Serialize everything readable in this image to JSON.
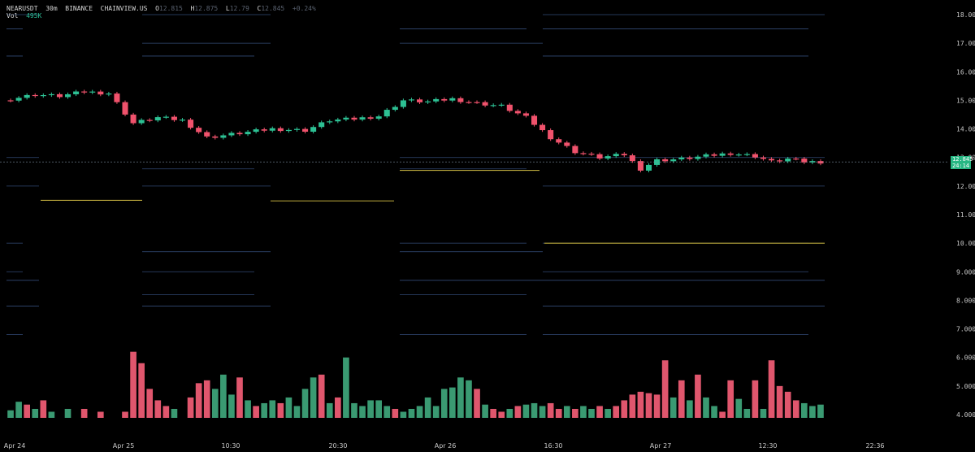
{
  "legend": {
    "symbol": "NEARUSDT",
    "interval": "30m",
    "exchange": "BINANCE",
    "source": "CHAINVIEW.US",
    "o_label": "O",
    "o_value": "12.815",
    "h_label": "H",
    "h_value": "12.875",
    "l_label": "L",
    "l_value": "12.79",
    "c_label": "C",
    "c_value": "12.845",
    "change": "+0.24%",
    "vol_label": "Vol",
    "vol_value": "495K"
  },
  "price_tag": {
    "price": "12.845",
    "countdown": "24:14"
  },
  "colors": {
    "background": "#000000",
    "up": "#2dc194",
    "down": "#f0526c",
    "volume_up": "#3a9a72",
    "volume_down": "#e0566d",
    "level_line": "#3f5d93",
    "support_line": "#b6a43b",
    "axis_text": "#c8c8c8"
  },
  "chart_data": {
    "type": "candlestick",
    "title": "",
    "xlabel": "",
    "ylabel": "",
    "ylim": [
      3.8,
      18.4
    ],
    "grid": false,
    "y_ticks": [
      "18.000",
      "17.000",
      "16.000",
      "15.000",
      "14.000",
      "13.000",
      "12.000",
      "11.000",
      "10.000",
      "9.000",
      "8.000",
      "7.000",
      "6.000",
      "5.000",
      "4.000"
    ],
    "x_labels": [
      "Apr 24",
      "Apr 25",
      "10:30",
      "20:30",
      "Apr 26",
      "16:30",
      "Apr 27",
      "12:30",
      "22:36"
    ],
    "last_price": 12.845,
    "close_path": [
      [
        0,
        15.05
      ],
      [
        3,
        15.2
      ],
      [
        6,
        15.15
      ],
      [
        9,
        15.3
      ],
      [
        12,
        15.25
      ],
      [
        15,
        14.2
      ],
      [
        18,
        14.4
      ],
      [
        21,
        14.3
      ],
      [
        24,
        13.7
      ],
      [
        28,
        13.85
      ],
      [
        32,
        14.0
      ],
      [
        36,
        13.95
      ],
      [
        39,
        14.3
      ],
      [
        42,
        14.35
      ],
      [
        45,
        14.45
      ],
      [
        48,
        15.0
      ],
      [
        51,
        14.95
      ],
      [
        54,
        15.05
      ],
      [
        57,
        14.9
      ],
      [
        60,
        14.8
      ],
      [
        63,
        14.4
      ],
      [
        66,
        13.7
      ],
      [
        69,
        13.2
      ],
      [
        72,
        13.0
      ],
      [
        75,
        13.1
      ],
      [
        77,
        12.6
      ],
      [
        79,
        12.9
      ],
      [
        82,
        12.95
      ],
      [
        85,
        13.05
      ],
      [
        88,
        13.15
      ],
      [
        91,
        13.05
      ],
      [
        93,
        12.85
      ],
      [
        95,
        12.95
      ],
      [
        97,
        12.85
      ],
      [
        99,
        12.85
      ]
    ],
    "candle_count": 100,
    "volume_scale_max": 6.2,
    "volumes": [
      {
        "i": 0,
        "v": 4.15,
        "dir": "up"
      },
      {
        "i": 1,
        "v": 4.45,
        "dir": "up"
      },
      {
        "i": 2,
        "v": 4.35,
        "dir": "down"
      },
      {
        "i": 3,
        "v": 4.2,
        "dir": "up"
      },
      {
        "i": 4,
        "v": 4.5,
        "dir": "down"
      },
      {
        "i": 5,
        "v": 4.1,
        "dir": "up"
      },
      {
        "i": 7,
        "v": 4.2,
        "dir": "up"
      },
      {
        "i": 9,
        "v": 4.2,
        "dir": "down"
      },
      {
        "i": 11,
        "v": 4.1,
        "dir": "down"
      },
      {
        "i": 14,
        "v": 4.1,
        "dir": "down"
      },
      {
        "i": 15,
        "v": 6.2,
        "dir": "down"
      },
      {
        "i": 16,
        "v": 5.8,
        "dir": "down"
      },
      {
        "i": 17,
        "v": 4.9,
        "dir": "down"
      },
      {
        "i": 18,
        "v": 4.5,
        "dir": "down"
      },
      {
        "i": 19,
        "v": 4.3,
        "dir": "down"
      },
      {
        "i": 20,
        "v": 4.2,
        "dir": "up"
      },
      {
        "i": 22,
        "v": 4.6,
        "dir": "down"
      },
      {
        "i": 23,
        "v": 5.1,
        "dir": "down"
      },
      {
        "i": 24,
        "v": 5.2,
        "dir": "down"
      },
      {
        "i": 25,
        "v": 4.9,
        "dir": "up"
      },
      {
        "i": 26,
        "v": 5.4,
        "dir": "up"
      },
      {
        "i": 27,
        "v": 4.7,
        "dir": "up"
      },
      {
        "i": 28,
        "v": 5.3,
        "dir": "down"
      },
      {
        "i": 29,
        "v": 4.5,
        "dir": "up"
      },
      {
        "i": 30,
        "v": 4.3,
        "dir": "down"
      },
      {
        "i": 31,
        "v": 4.4,
        "dir": "up"
      },
      {
        "i": 32,
        "v": 4.5,
        "dir": "up"
      },
      {
        "i": 33,
        "v": 4.4,
        "dir": "down"
      },
      {
        "i": 34,
        "v": 4.6,
        "dir": "up"
      },
      {
        "i": 35,
        "v": 4.3,
        "dir": "up"
      },
      {
        "i": 36,
        "v": 4.9,
        "dir": "up"
      },
      {
        "i": 37,
        "v": 5.3,
        "dir": "up"
      },
      {
        "i": 38,
        "v": 5.4,
        "dir": "down"
      },
      {
        "i": 39,
        "v": 4.4,
        "dir": "up"
      },
      {
        "i": 40,
        "v": 4.6,
        "dir": "down"
      },
      {
        "i": 41,
        "v": 6.0,
        "dir": "up"
      },
      {
        "i": 42,
        "v": 4.4,
        "dir": "up"
      },
      {
        "i": 43,
        "v": 4.3,
        "dir": "up"
      },
      {
        "i": 44,
        "v": 4.5,
        "dir": "up"
      },
      {
        "i": 45,
        "v": 4.5,
        "dir": "up"
      },
      {
        "i": 46,
        "v": 4.3,
        "dir": "up"
      },
      {
        "i": 47,
        "v": 4.2,
        "dir": "down"
      },
      {
        "i": 48,
        "v": 4.1,
        "dir": "up"
      },
      {
        "i": 49,
        "v": 4.2,
        "dir": "up"
      },
      {
        "i": 50,
        "v": 4.3,
        "dir": "up"
      },
      {
        "i": 51,
        "v": 4.6,
        "dir": "up"
      },
      {
        "i": 52,
        "v": 4.3,
        "dir": "up"
      },
      {
        "i": 53,
        "v": 4.9,
        "dir": "up"
      },
      {
        "i": 54,
        "v": 4.95,
        "dir": "up"
      },
      {
        "i": 55,
        "v": 5.3,
        "dir": "up"
      },
      {
        "i": 56,
        "v": 5.2,
        "dir": "up"
      },
      {
        "i": 57,
        "v": 4.9,
        "dir": "down"
      },
      {
        "i": 58,
        "v": 4.35,
        "dir": "up"
      },
      {
        "i": 59,
        "v": 4.2,
        "dir": "down"
      },
      {
        "i": 60,
        "v": 4.1,
        "dir": "down"
      },
      {
        "i": 61,
        "v": 4.2,
        "dir": "up"
      },
      {
        "i": 62,
        "v": 4.3,
        "dir": "down"
      },
      {
        "i": 63,
        "v": 4.35,
        "dir": "up"
      },
      {
        "i": 64,
        "v": 4.4,
        "dir": "up"
      },
      {
        "i": 65,
        "v": 4.3,
        "dir": "up"
      },
      {
        "i": 66,
        "v": 4.4,
        "dir": "down"
      },
      {
        "i": 67,
        "v": 4.2,
        "dir": "down"
      },
      {
        "i": 68,
        "v": 4.3,
        "dir": "up"
      },
      {
        "i": 69,
        "v": 4.2,
        "dir": "down"
      },
      {
        "i": 70,
        "v": 4.3,
        "dir": "up"
      },
      {
        "i": 71,
        "v": 4.2,
        "dir": "up"
      },
      {
        "i": 72,
        "v": 4.3,
        "dir": "down"
      },
      {
        "i": 73,
        "v": 4.2,
        "dir": "up"
      },
      {
        "i": 74,
        "v": 4.3,
        "dir": "down"
      },
      {
        "i": 75,
        "v": 4.5,
        "dir": "down"
      },
      {
        "i": 76,
        "v": 4.7,
        "dir": "down"
      },
      {
        "i": 77,
        "v": 4.8,
        "dir": "down"
      },
      {
        "i": 78,
        "v": 4.75,
        "dir": "down"
      },
      {
        "i": 79,
        "v": 4.7,
        "dir": "down"
      },
      {
        "i": 80,
        "v": 5.9,
        "dir": "down"
      },
      {
        "i": 81,
        "v": 4.6,
        "dir": "up"
      },
      {
        "i": 82,
        "v": 5.2,
        "dir": "down"
      },
      {
        "i": 83,
        "v": 4.5,
        "dir": "up"
      },
      {
        "i": 84,
        "v": 5.4,
        "dir": "down"
      },
      {
        "i": 85,
        "v": 4.6,
        "dir": "up"
      },
      {
        "i": 86,
        "v": 4.3,
        "dir": "up"
      },
      {
        "i": 87,
        "v": 4.1,
        "dir": "down"
      },
      {
        "i": 88,
        "v": 5.2,
        "dir": "down"
      },
      {
        "i": 89,
        "v": 4.55,
        "dir": "up"
      },
      {
        "i": 90,
        "v": 4.2,
        "dir": "up"
      },
      {
        "i": 91,
        "v": 5.2,
        "dir": "down"
      },
      {
        "i": 92,
        "v": 4.2,
        "dir": "up"
      },
      {
        "i": 93,
        "v": 5.9,
        "dir": "down"
      },
      {
        "i": 94,
        "v": 5.0,
        "dir": "down"
      },
      {
        "i": 95,
        "v": 4.8,
        "dir": "down"
      },
      {
        "i": 96,
        "v": 4.5,
        "dir": "down"
      },
      {
        "i": 97,
        "v": 4.4,
        "dir": "up"
      },
      {
        "i": 98,
        "v": 4.3,
        "dir": "up"
      },
      {
        "i": 99,
        "v": 4.35,
        "dir": "up"
      }
    ],
    "levels": [
      {
        "price": 18.0
      },
      {
        "price": 17.5
      },
      {
        "price": 17.0
      },
      {
        "price": 16.55
      },
      {
        "price": 13.0
      },
      {
        "price": 12.6
      },
      {
        "price": 12.0
      },
      {
        "price": 10.0
      },
      {
        "price": 9.7
      },
      {
        "price": 9.0
      },
      {
        "price": 8.7
      },
      {
        "price": 8.2
      },
      {
        "price": 7.8
      },
      {
        "price": 6.8
      }
    ],
    "support_lines": [
      {
        "price": 11.5
      },
      {
        "price": 11.48
      },
      {
        "price": 12.55
      },
      {
        "price": 10.0
      }
    ]
  }
}
